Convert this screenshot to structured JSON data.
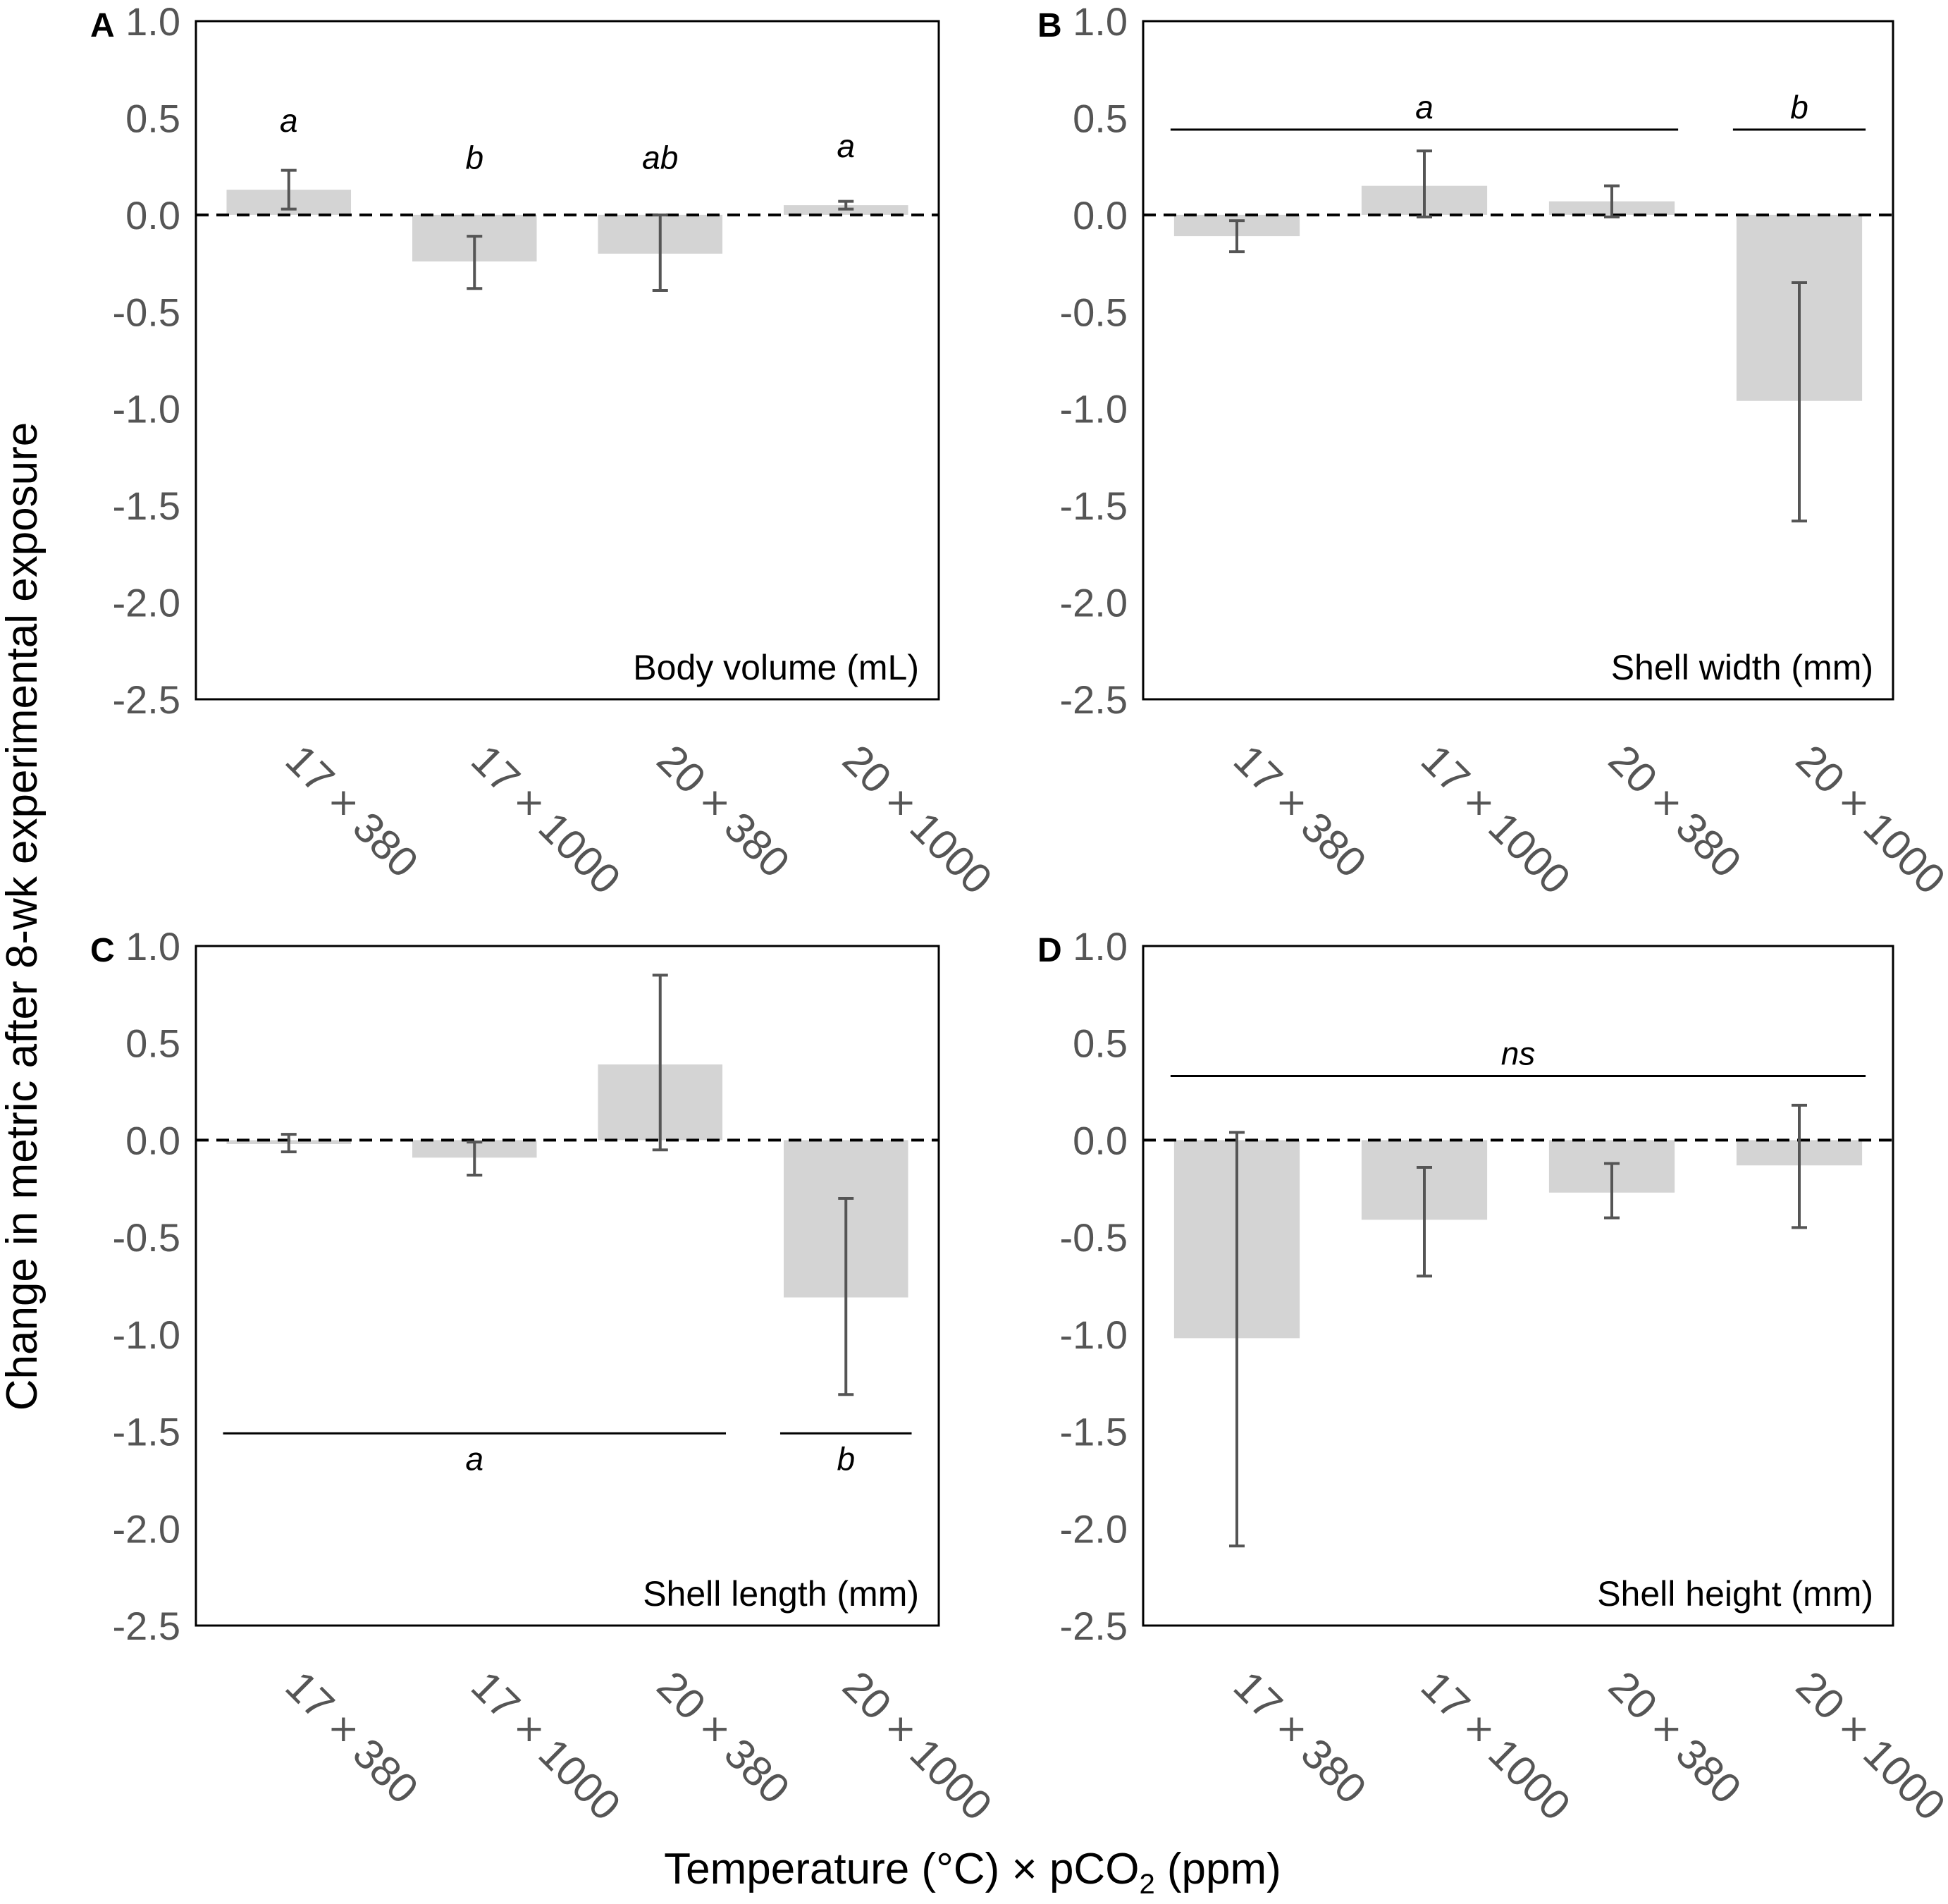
{
  "chart_data": [
    {
      "type": "bar",
      "panel": "A",
      "metric_label": "Body volume (mL)",
      "categories": [
        "17 × 380",
        "17 × 1000",
        "20 × 380",
        "20 × 1000"
      ],
      "values": [
        0.13,
        -0.24,
        -0.2,
        0.05
      ],
      "error_low": [
        0.03,
        -0.38,
        -0.39,
        0.03
      ],
      "error_high": [
        0.23,
        -0.11,
        0.0,
        0.07
      ],
      "ylim": [
        -2.5,
        1.0
      ],
      "yticks": [
        "1.0",
        "0.5",
        "0.0",
        "-0.5",
        "-1.0",
        "-1.5",
        "-2.0",
        "-2.5"
      ],
      "significance": [
        {
          "label": "a",
          "from": 0,
          "to": 0,
          "y": 0.37,
          "line": false
        },
        {
          "label": "b",
          "from": 1,
          "to": 1,
          "y": 0.18,
          "line": false
        },
        {
          "label": "ab",
          "from": 2,
          "to": 2,
          "y": 0.18,
          "line": false
        },
        {
          "label": "a",
          "from": 3,
          "to": 3,
          "y": 0.24,
          "line": false
        }
      ]
    },
    {
      "type": "bar",
      "panel": "B",
      "metric_label": "Shell width (mm)",
      "categories": [
        "17 × 380",
        "17 × 1000",
        "20 × 380",
        "20 × 1000"
      ],
      "values": [
        -0.11,
        0.15,
        0.07,
        -0.96
      ],
      "error_low": [
        -0.19,
        -0.01,
        -0.01,
        -1.58
      ],
      "error_high": [
        -0.03,
        0.33,
        0.15,
        -0.35
      ],
      "ylim": [
        -2.5,
        1.0
      ],
      "yticks": [
        "1.0",
        "0.5",
        "0.0",
        "-0.5",
        "-1.0",
        "-1.5",
        "-2.0",
        "-2.5"
      ],
      "significance": [
        {
          "label": "a",
          "from": 0,
          "to": 2,
          "y": 0.44,
          "line": true
        },
        {
          "label": "b",
          "from": 3,
          "to": 3,
          "y": 0.44,
          "line": true
        }
      ]
    },
    {
      "type": "bar",
      "panel": "C",
      "metric_label": "Shell length (mm)",
      "categories": [
        "17 × 380",
        "17 × 1000",
        "20 × 380",
        "20 × 1000"
      ],
      "values": [
        -0.02,
        -0.09,
        0.39,
        -0.81
      ],
      "error_low": [
        -0.06,
        -0.18,
        -0.05,
        -1.31
      ],
      "error_high": [
        0.03,
        -0.01,
        0.85,
        -0.3
      ],
      "ylim": [
        -2.5,
        1.0
      ],
      "yticks": [
        "1.0",
        "0.5",
        "0.0",
        "-0.5",
        "-1.0",
        "-1.5",
        "-2.0",
        "-2.5"
      ],
      "significance": [
        {
          "label": "a",
          "from": 0,
          "to": 2,
          "y": -1.51,
          "line": true,
          "label_below": true
        },
        {
          "label": "b",
          "from": 3,
          "to": 3,
          "y": -1.51,
          "line": true,
          "label_below": true
        }
      ]
    },
    {
      "type": "bar",
      "panel": "D",
      "metric_label": "Shell height (mm)",
      "categories": [
        "17 × 380",
        "17 × 1000",
        "20 × 380",
        "20 × 1000"
      ],
      "values": [
        -1.02,
        -0.41,
        -0.27,
        -0.13
      ],
      "error_low": [
        -2.09,
        -0.7,
        -0.4,
        -0.45
      ],
      "error_high": [
        0.04,
        -0.14,
        -0.12,
        0.18
      ],
      "ylim": [
        -2.5,
        1.0
      ],
      "yticks": [
        "1.0",
        "0.5",
        "0.0",
        "-0.5",
        "-1.0",
        "-1.5",
        "-2.0",
        "-2.5"
      ],
      "significance": [
        {
          "label": "ns",
          "from": 0,
          "to": 3,
          "y": 0.33,
          "line": true
        }
      ]
    }
  ],
  "ylabel": "Change in metric after 8-wk experimental exposure",
  "xlabel": {
    "main": "Temperature (°C) × pCO",
    "subscript": "2",
    "suffix": " (ppm)"
  },
  "colors": {
    "bar": "#d4d4d4",
    "error_bar": "#555555",
    "axis": "#000000",
    "zero_line": "#000000"
  }
}
